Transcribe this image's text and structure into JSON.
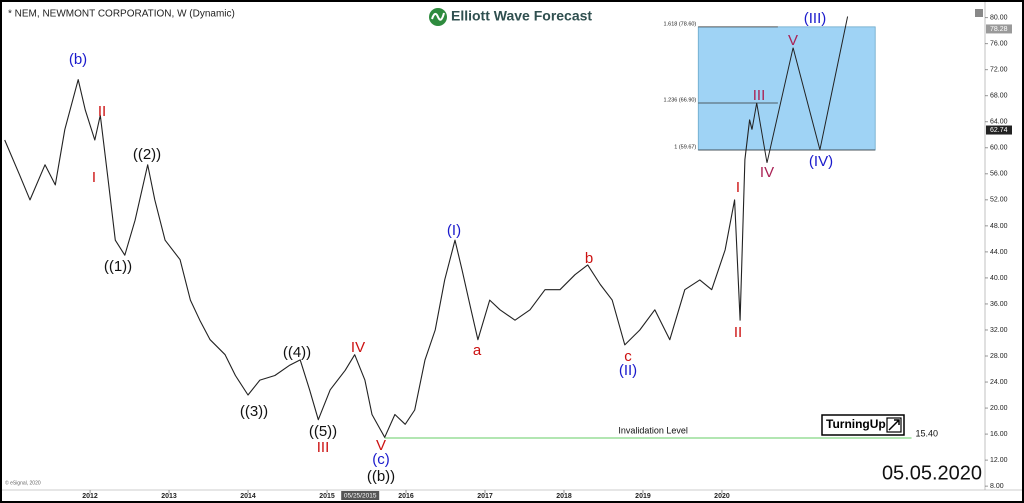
{
  "chart_data": {
    "type": "line",
    "title": "* NEM, NEWMONT CORPORATION, W (Dynamic)",
    "brand": "Elliott Wave Forecast",
    "date_stamp": "05.05.2020",
    "badge": "TurningUp",
    "copyright": "© eSignal, 2020",
    "xlim": [
      2010.86,
      2023.33
    ],
    "ylim": [
      7.4,
      81.5
    ],
    "xticks": [
      2012,
      2013,
      2014,
      2015,
      2016,
      2017,
      2018,
      2019,
      2020
    ],
    "yticks": [
      {
        "value": 8,
        "label": "8.00"
      },
      {
        "value": 12,
        "label": "12.00"
      },
      {
        "value": 16,
        "label": "16.00"
      },
      {
        "value": 20,
        "label": "20.00"
      },
      {
        "value": 24,
        "label": "24.00"
      },
      {
        "value": 28,
        "label": "28.00"
      },
      {
        "value": 32,
        "label": "32.00"
      },
      {
        "value": 36,
        "label": "36.00"
      },
      {
        "value": 40,
        "label": "40.00"
      },
      {
        "value": 44,
        "label": "44.00"
      },
      {
        "value": 48,
        "label": "48.00"
      },
      {
        "value": 52,
        "label": "52.00"
      },
      {
        "value": 56,
        "label": "56.00"
      },
      {
        "value": 60,
        "label": "60.00"
      },
      {
        "value": 64,
        "label": "64.00"
      },
      {
        "value": 68,
        "label": "68.00"
      },
      {
        "value": 72,
        "label": "72.00"
      },
      {
        "value": 76,
        "label": "76.00"
      },
      {
        "value": 80,
        "label": "80.00"
      }
    ],
    "cursor": {
      "value": 2015.42,
      "label": "05/25/2015"
    },
    "color": "#222222",
    "x": [
      2010.92,
      2011.11,
      2011.24,
      2011.43,
      2011.56,
      2011.68,
      2011.85,
      2011.94,
      2012.06,
      2012.13,
      2012.23,
      2012.32,
      2012.44,
      2012.57,
      2012.73,
      2012.82,
      2012.95,
      2013.14,
      2013.27,
      2013.39,
      2013.52,
      2013.71,
      2013.84,
      2014.0,
      2014.15,
      2014.34,
      2014.53,
      2014.66,
      2014.78,
      2014.89,
      2015.04,
      2015.23,
      2015.35,
      2015.48,
      2015.57,
      2015.73,
      2015.86,
      2015.99,
      2016.11,
      2016.24,
      2016.37,
      2016.49,
      2016.62,
      2016.71,
      2016.81,
      2016.91,
      2017.06,
      2017.19,
      2017.38,
      2017.57,
      2017.76,
      2017.95,
      2018.14,
      2018.3,
      2018.46,
      2018.61,
      2018.77,
      2018.96,
      2019.15,
      2019.34,
      2019.53,
      2019.72,
      2019.87,
      2020.04,
      2020.16,
      2020.23,
      2020.29,
      2020.35,
      2020.38
    ],
    "values": [
      61.2,
      55.8,
      52,
      57.4,
      54.3,
      62.8,
      70.5,
      65.8,
      61.2,
      65,
      55,
      45.8,
      43.5,
      48.9,
      57.4,
      52,
      45.8,
      42.8,
      36.6,
      33.5,
      30.5,
      28.2,
      25,
      22,
      24.3,
      25,
      26.6,
      27.4,
      22.8,
      18.2,
      22.8,
      25.8,
      28.2,
      24.3,
      19,
      15.5,
      19,
      17.5,
      19.7,
      27.4,
      32,
      39.7,
      45.8,
      41.2,
      35.8,
      30.5,
      36.6,
      35.1,
      33.5,
      35.1,
      38.2,
      38.2,
      40.5,
      42,
      39,
      36.6,
      29.7,
      32,
      35.1,
      30.5,
      38.2,
      39.7,
      38.2,
      44.3,
      52,
      33.5,
      58.2,
      64.3,
      62.8
    ],
    "projection_x": [
      2020.38,
      2020.44,
      2020.57,
      2020.9,
      2021.24,
      2021.59
    ],
    "projection_values": [
      62.8,
      66.9,
      57.7,
      75.4,
      59.7,
      80.2
    ],
    "price_markers": [
      {
        "value": 62.74,
        "label": "62.74",
        "color": "#222222"
      },
      {
        "value": 78.28,
        "label": "78.28",
        "color": "#9a9a9a"
      }
    ],
    "fib_box": {
      "x": [
        2019.7,
        2021.94
      ],
      "color": "#9fd3f5",
      "levels": [
        {
          "value": 59.67,
          "label": "1 (59.67)"
        },
        {
          "value": 66.9,
          "label": "1.236 (66.90)"
        },
        {
          "value": 78.6,
          "label": "1.618 (78.60)"
        }
      ]
    },
    "invalidation": {
      "label": "Invalidation Level",
      "value": 15.4,
      "value_label": "15.40",
      "x": [
        2015.73,
        2022.4
      ],
      "color": "#66cc66"
    },
    "waves": [
      {
        "text": "(b)",
        "color": "#1a1acc"
      },
      {
        "text": "II",
        "color": "#cc1111"
      },
      {
        "text": "I",
        "color": "#cc1111"
      },
      {
        "text": "((2))",
        "color": "#111111"
      },
      {
        "text": "((1))",
        "color": "#111111"
      },
      {
        "text": "((4))",
        "color": "#111111"
      },
      {
        "text": "((3))",
        "color": "#111111"
      },
      {
        "text": "((5))",
        "color": "#111111"
      },
      {
        "text": "IV",
        "color": "#cc1111"
      },
      {
        "text": "III",
        "color": "#cc1111"
      },
      {
        "text": "V",
        "color": "#cc1111"
      },
      {
        "text": "(c)",
        "color": "#1a1acc"
      },
      {
        "text": "((b))",
        "color": "#111111"
      },
      {
        "text": "(I)",
        "color": "#1a1acc"
      },
      {
        "text": "a",
        "color": "#cc1111"
      },
      {
        "text": "b",
        "color": "#cc1111"
      },
      {
        "text": "c",
        "color": "#cc1111"
      },
      {
        "text": "(II)",
        "color": "#1a1acc"
      },
      {
        "text": "I",
        "color": "#cc1111"
      },
      {
        "text": "II",
        "color": "#cc1111"
      },
      {
        "text": "III",
        "color": "#aa2255"
      },
      {
        "text": "IV",
        "color": "#aa2255"
      },
      {
        "text": "V",
        "color": "#aa2255"
      },
      {
        "text": "(III)",
        "color": "#1a1acc"
      },
      {
        "text": "(IV)",
        "color": "#1a1acc"
      }
    ]
  }
}
